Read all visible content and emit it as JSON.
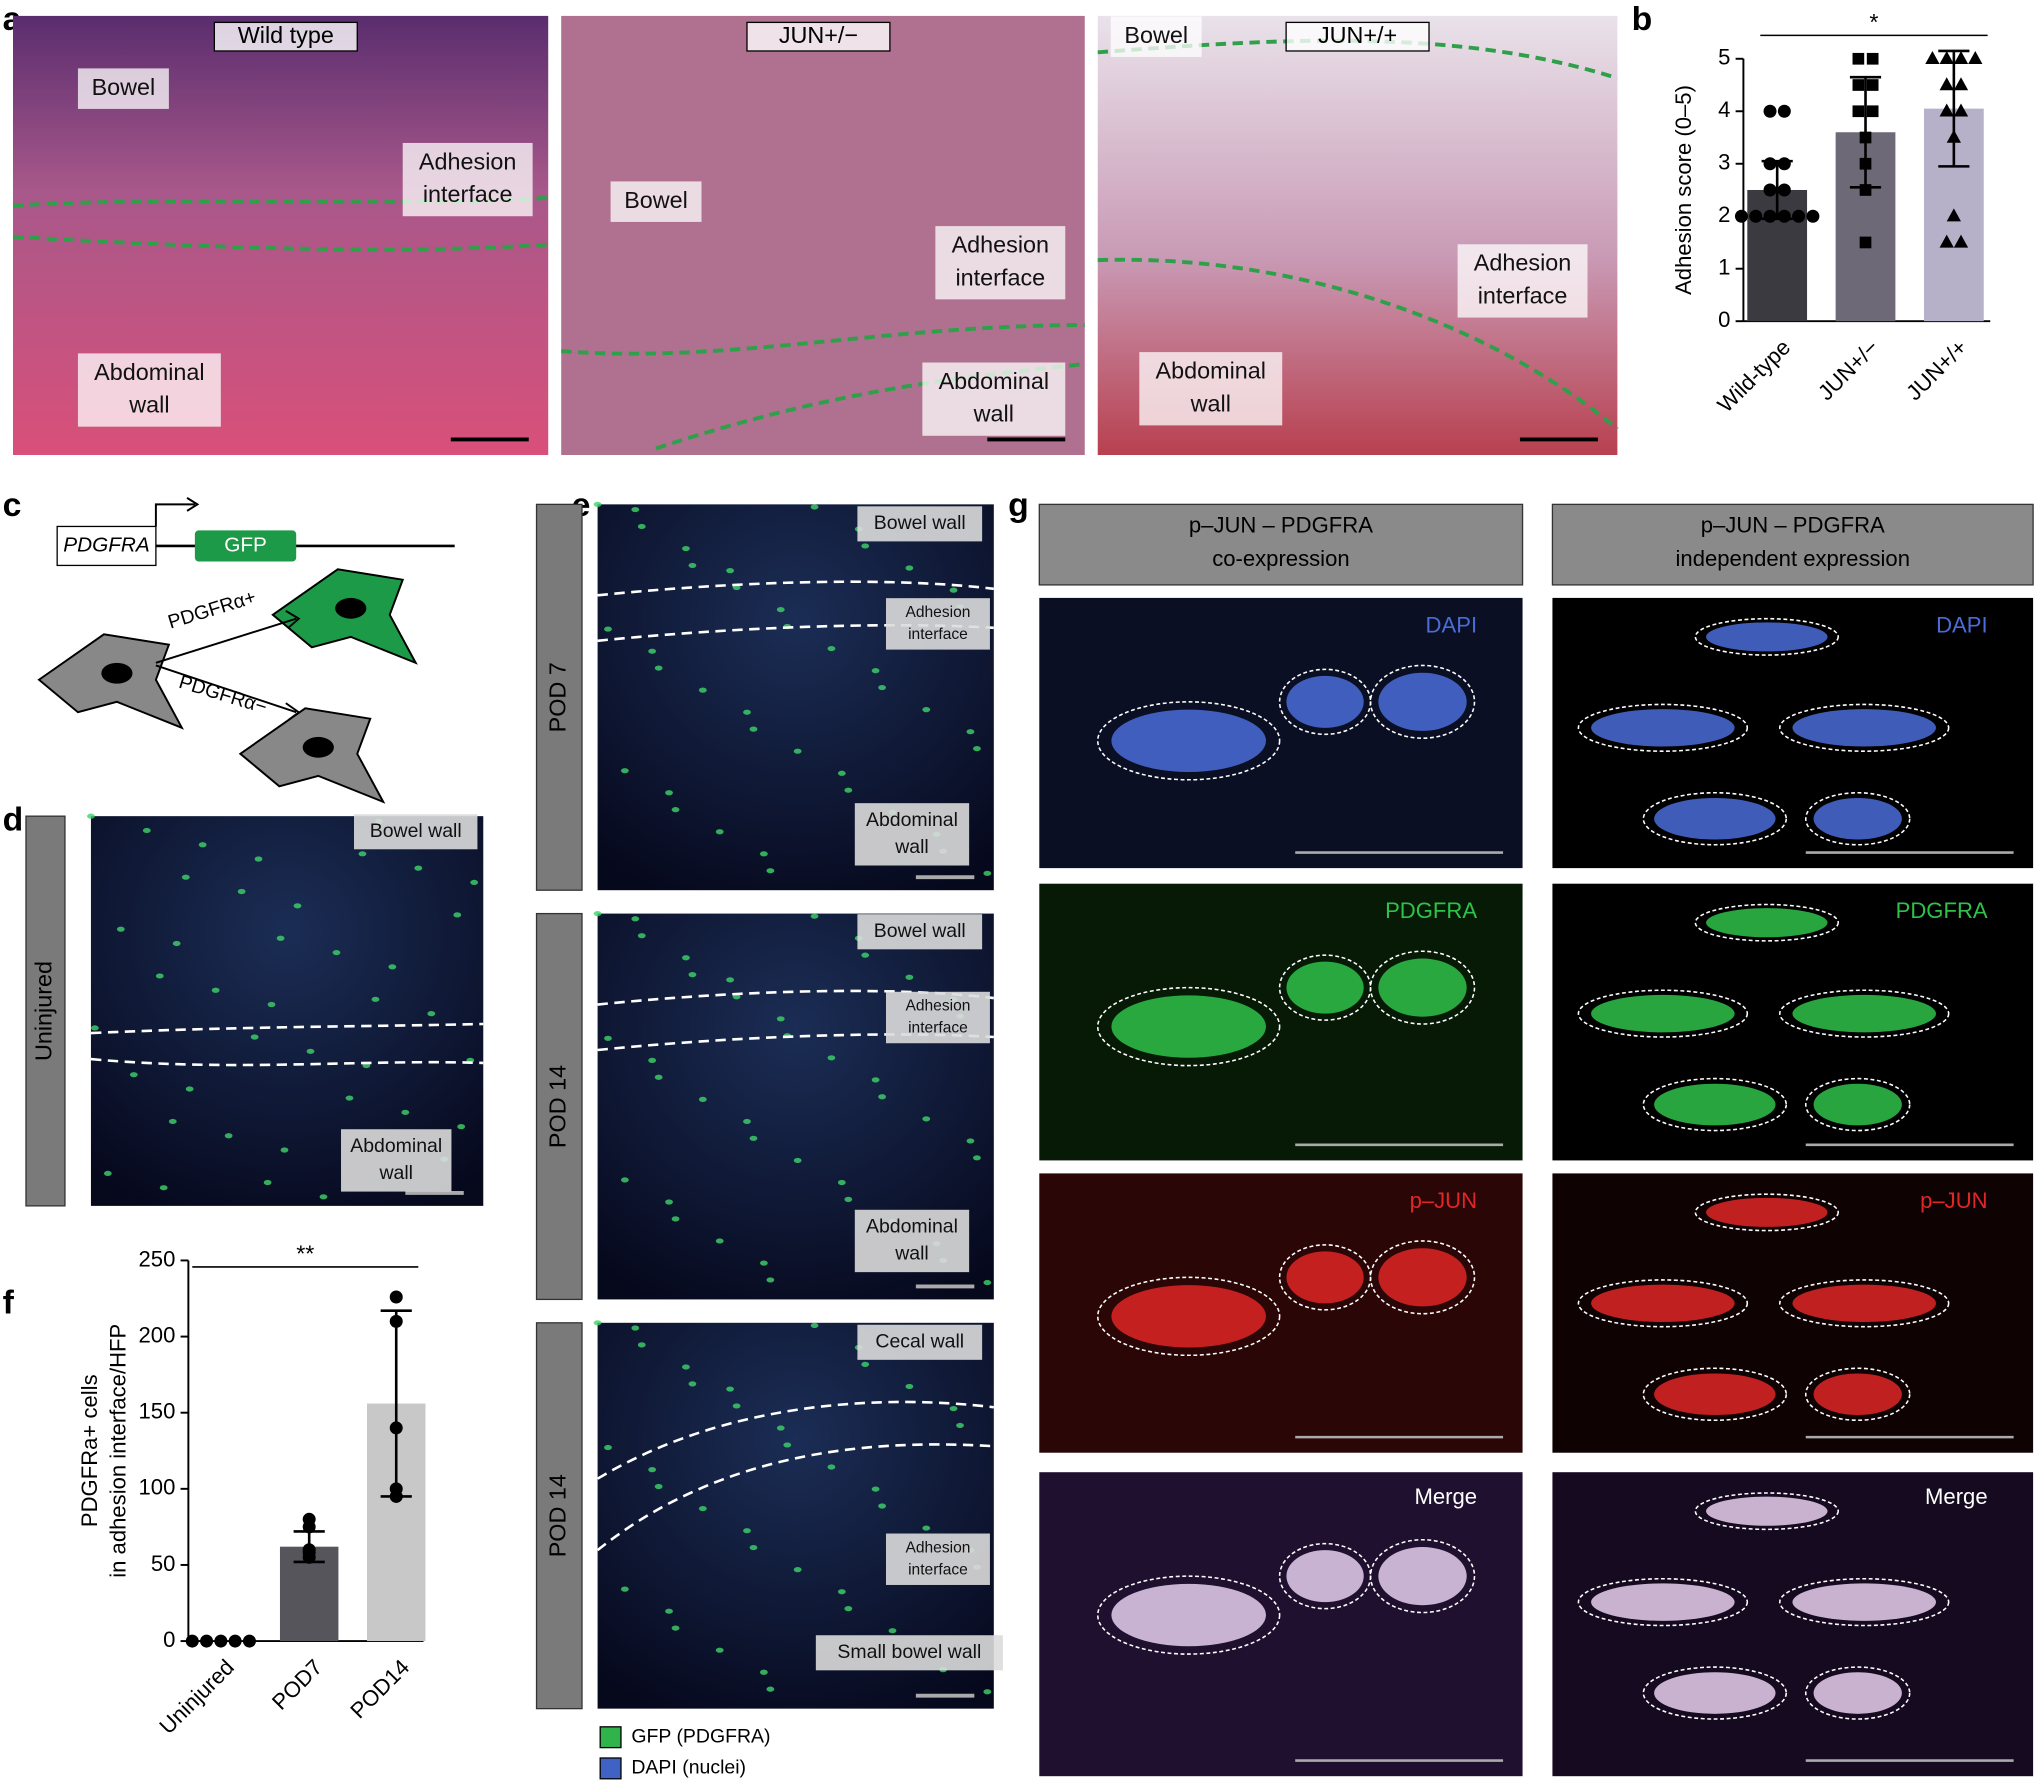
{
  "chart_data": [
    {
      "type": "bar",
      "ylabel": "Adhesion score (0–5)",
      "significance": "*",
      "categories": [
        "Wild-type",
        "JUN+/−",
        "JUN+/+"
      ],
      "values": [
        2.5,
        3.6,
        4.05
      ],
      "errors": [
        0.55,
        1.05,
        1.1
      ],
      "colors": [
        "#3b3a40",
        "#6d6976",
        "#b7b0c9"
      ],
      "markers": [
        "circle",
        "square",
        "triangle"
      ],
      "points": [
        [
          4,
          4,
          3,
          3,
          2.5,
          2.5,
          2,
          2,
          2,
          2,
          2,
          2
        ],
        [
          5,
          5,
          4.5,
          4.5,
          4,
          4,
          3.5,
          3,
          2.5,
          1.5
        ],
        [
          5,
          5,
          5,
          5,
          4.5,
          4.5,
          4,
          4,
          3.5,
          2,
          1.5,
          1.5
        ]
      ],
      "ylim": [
        0,
        5
      ],
      "yticks": [
        0,
        1,
        2,
        3,
        4,
        5
      ]
    },
    {
      "type": "bar",
      "ylabel": [
        "PDGFRa+ cells",
        "in adhesion interface/HFP"
      ],
      "significance": "**",
      "categories": [
        "Uninjured",
        "POD7",
        "POD14"
      ],
      "values": [
        0,
        62,
        156
      ],
      "errors": [
        0,
        10,
        61
      ],
      "colors": [
        "#55555b",
        "#55555b",
        "#c8c8c8"
      ],
      "markers": [
        "circle",
        "circle",
        "circle"
      ],
      "points": [
        [
          0,
          0,
          0,
          0,
          0
        ],
        [
          80,
          75,
          60,
          58,
          55
        ],
        [
          226,
          210,
          140,
          100,
          95
        ]
      ],
      "ylim": [
        0,
        250
      ],
      "yticks": [
        0,
        50,
        100,
        150,
        200,
        250
      ]
    }
  ],
  "figure": {
    "a": {
      "letter": "a",
      "images": [
        {
          "tag": "Wild type",
          "labels": [
            [
              "Bowel"
            ],
            [
              "Adhesion",
              "interface"
            ],
            [
              "Abdominal",
              "wall"
            ]
          ]
        },
        {
          "tag": "JUN+/−",
          "labels": [
            [
              "Bowel"
            ],
            [
              "Adhesion",
              "interface"
            ],
            [
              "Abdominal",
              "wall"
            ]
          ]
        },
        {
          "tag": "JUN+/+",
          "labels": [
            [
              "Bowel"
            ],
            [
              "Adhesion",
              "interface"
            ],
            [
              "Abdominal",
              "wall"
            ]
          ]
        }
      ]
    },
    "b": {
      "letter": "b"
    },
    "c": {
      "letter": "c",
      "promoter": "PDGFRA",
      "reporter": "GFP",
      "positive": "PDGFRα+",
      "negative": "PDGFRα−"
    },
    "d": {
      "letter": "d",
      "side": "Uninjured",
      "labels": [
        [
          "Bowel wall"
        ],
        [
          "Abdominal",
          "wall"
        ]
      ]
    },
    "e": {
      "letter": "e",
      "panels": [
        {
          "side": "POD 7",
          "labels": [
            [
              "Bowel wall"
            ],
            [
              "Adhesion",
              "interface"
            ],
            [
              "Abdominal",
              "wall"
            ]
          ]
        },
        {
          "side": "POD 14",
          "labels": [
            [
              "Bowel wall"
            ],
            [
              "Adhesion",
              "interface"
            ],
            [
              "Abdominal",
              "wall"
            ]
          ]
        },
        {
          "side": "POD 14",
          "labels": [
            [
              "Cecal wall"
            ],
            [
              "Adhesion",
              "interface"
            ],
            [
              "Small bowel wall"
            ]
          ]
        }
      ],
      "legend": [
        "GFP (PDGFRA)",
        "DAPI (nuclei)"
      ]
    },
    "f": {
      "letter": "f"
    },
    "g": {
      "letter": "g",
      "columns": [
        {
          "header": [
            "p–JUN – PDGFRA",
            "co-expression"
          ]
        },
        {
          "header": [
            "p–JUN – PDGFRA",
            "independent expression"
          ]
        }
      ],
      "channels": [
        "DAPI",
        "PDGFRA",
        "p–JUN",
        "Merge"
      ]
    }
  }
}
